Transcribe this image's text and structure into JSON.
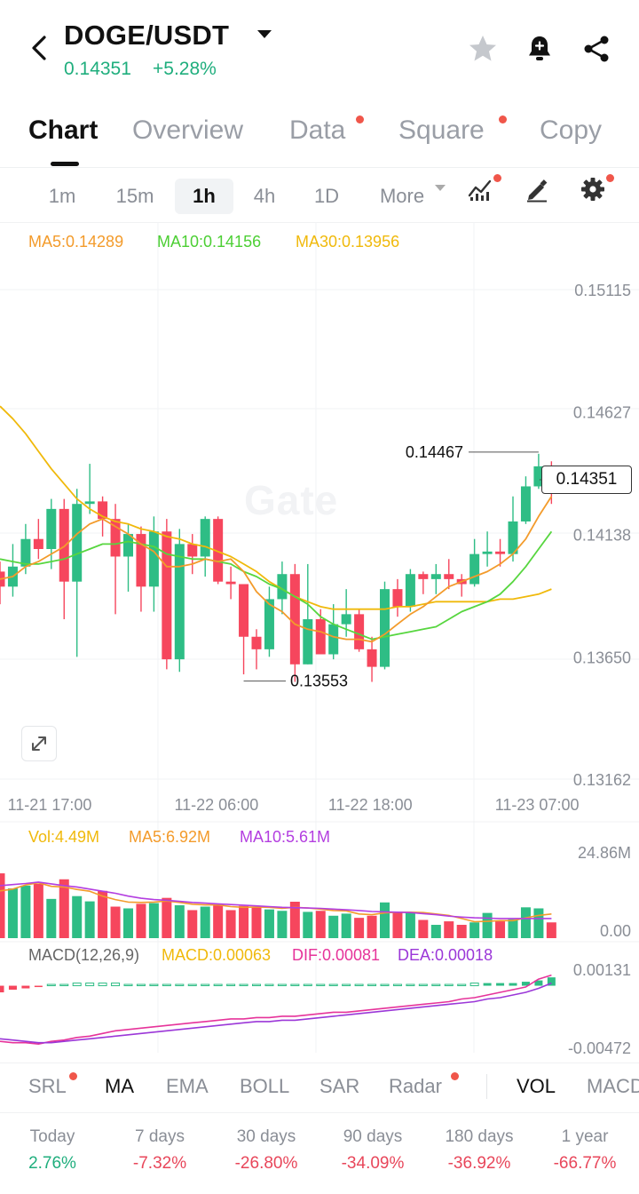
{
  "header": {
    "pair": "DOGE/USDT",
    "price": "0.14351",
    "change": "+5.28%"
  },
  "tabs": [
    {
      "label": "Chart",
      "active": true,
      "dot": false
    },
    {
      "label": "Overview",
      "active": false,
      "dot": false
    },
    {
      "label": "Data",
      "active": false,
      "dot": true
    },
    {
      "label": "Square",
      "active": false,
      "dot": true
    },
    {
      "label": "Copy",
      "active": false,
      "dot": false
    }
  ],
  "intervals": {
    "items": [
      "1m",
      "15m",
      "1h",
      "4h",
      "1D"
    ],
    "active": "1h",
    "more": "More"
  },
  "ma_legend": {
    "ma5": "MA5:0.14289",
    "ma10": "MA10:0.14156",
    "ma30": "MA30:0.13956"
  },
  "colors": {
    "up": "#2ebd85",
    "down": "#f6465d",
    "ma5": "#f39b2b",
    "ma10": "#57d63f",
    "ma30": "#f0b90b",
    "vol_ma10": "#b33ee0",
    "dif": "#e6339a",
    "dea": "#9b37d8",
    "accent_green": "#1fae7d",
    "accent_red": "#e8465a"
  },
  "markers": {
    "high": "0.14467",
    "low": "0.13553",
    "current": "0.14351"
  },
  "watermark": "Gate",
  "volume_legend": {
    "vol": "Vol:4.49M",
    "ma5": "MA5:6.92M",
    "ma10": "MA10:5.61M",
    "max_label": "24.86M",
    "min_label": "0.00"
  },
  "macd_legend": {
    "title": "MACD(12,26,9)",
    "macd": "MACD:0.00063",
    "dif": "DIF:0.00081",
    "dea": "DEA:0.00018",
    "max_label": "0.00131",
    "min_label": "-0.00472"
  },
  "indicators": [
    {
      "label": "SRL",
      "dot": true,
      "dark": false
    },
    {
      "label": "MA",
      "dot": false,
      "dark": true
    },
    {
      "label": "EMA",
      "dot": false,
      "dark": false
    },
    {
      "label": "BOLL",
      "dot": false,
      "dark": false
    },
    {
      "label": "SAR",
      "dot": false,
      "dark": false
    },
    {
      "label": "Radar",
      "dot": true,
      "dark": false
    },
    {
      "label": "VOL",
      "dot": false,
      "dark": true
    },
    {
      "label": "MACD",
      "dot": false,
      "dark": false
    }
  ],
  "performance": [
    {
      "label": "Today",
      "value": "2.76%",
      "dir": "up"
    },
    {
      "label": "7 days",
      "value": "-7.32%",
      "dir": "down"
    },
    {
      "label": "30 days",
      "value": "-26.80%",
      "dir": "down"
    },
    {
      "label": "90 days",
      "value": "-34.09%",
      "dir": "down"
    },
    {
      "label": "180 days",
      "value": "-36.92%",
      "dir": "down"
    },
    {
      "label": "1 year",
      "value": "-66.77%",
      "dir": "down"
    }
  ],
  "chart_data": {
    "type": "candlestick",
    "y_ticks": [
      0.15115,
      0.14627,
      0.14138,
      0.1365,
      0.13162
    ],
    "y_tick_labels": [
      "0.15115",
      "0.14627",
      "0.14138",
      "0.13650",
      "0.13162"
    ],
    "x_tick_labels": [
      "11-21 17:00",
      "11-22 06:00",
      "11-22 18:00",
      "11-23 07:00"
    ],
    "x_tick_index": [
      0,
      13,
      25,
      38
    ],
    "candles": [
      [
        0.1399,
        0.1393,
        0.1403,
        0.1386
      ],
      [
        0.1393,
        0.1401,
        0.141,
        0.1389
      ],
      [
        0.1401,
        0.1412,
        0.1418,
        0.1398
      ],
      [
        0.1412,
        0.1408,
        0.142,
        0.1404
      ],
      [
        0.1408,
        0.1424,
        0.1428,
        0.14
      ],
      [
        0.1424,
        0.1395,
        0.1428,
        0.138
      ],
      [
        0.1395,
        0.1426,
        0.1432,
        0.1365
      ],
      [
        0.1426,
        0.1427,
        0.1442,
        0.1422
      ],
      [
        0.1427,
        0.142,
        0.1429,
        0.1413
      ],
      [
        0.142,
        0.1405,
        0.1426,
        0.1382
      ],
      [
        0.1405,
        0.1414,
        0.1418,
        0.1391
      ],
      [
        0.1414,
        0.1393,
        0.1417,
        0.1383
      ],
      [
        0.1393,
        0.1415,
        0.1421,
        0.1383
      ],
      [
        0.1415,
        0.1364,
        0.142,
        0.136
      ],
      [
        0.1364,
        0.141,
        0.1416,
        0.1359
      ],
      [
        0.141,
        0.1405,
        0.1414,
        0.1398
      ],
      [
        0.1405,
        0.142,
        0.1421,
        0.1397
      ],
      [
        0.142,
        0.1395,
        0.1421,
        0.1394
      ],
      [
        0.1395,
        0.1394,
        0.1401,
        0.1388
      ],
      [
        0.1394,
        0.1373,
        0.1394,
        0.1358
      ],
      [
        0.1373,
        0.1368,
        0.1376,
        0.136
      ],
      [
        0.1368,
        0.1388,
        0.1393,
        0.1365
      ],
      [
        0.1388,
        0.1398,
        0.1403,
        0.1382
      ],
      [
        0.1398,
        0.1362,
        0.1402,
        0.1355
      ],
      [
        0.1362,
        0.138,
        0.1402,
        0.1362
      ],
      [
        0.138,
        0.1366,
        0.1384,
        0.1366
      ],
      [
        0.1366,
        0.1378,
        0.1386,
        0.1364
      ],
      [
        0.1378,
        0.1382,
        0.1392,
        0.1373
      ],
      [
        0.1382,
        0.1368,
        0.1384,
        0.1367
      ],
      [
        0.1368,
        0.1361,
        0.1373,
        0.1355
      ],
      [
        0.1361,
        0.1392,
        0.1395,
        0.136
      ],
      [
        0.1392,
        0.1385,
        0.1396,
        0.1381
      ],
      [
        0.1385,
        0.1398,
        0.14,
        0.1383
      ],
      [
        0.1398,
        0.1396,
        0.1399,
        0.139
      ],
      [
        0.1396,
        0.1398,
        0.1402,
        0.139
      ],
      [
        0.1398,
        0.1396,
        0.1404,
        0.1392
      ],
      [
        0.1396,
        0.1394,
        0.1398,
        0.1389
      ],
      [
        0.1394,
        0.1406,
        0.1412,
        0.1393
      ],
      [
        0.1406,
        0.1407,
        0.1415,
        0.1401
      ],
      [
        0.1407,
        0.1406,
        0.1412,
        0.1401
      ],
      [
        0.1406,
        0.1419,
        0.1429,
        0.1403
      ],
      [
        0.1419,
        0.1433,
        0.1437,
        0.1418
      ],
      [
        0.1433,
        0.1441,
        0.1446,
        0.1432
      ],
      [
        0.1441,
        0.1438,
        0.1443,
        0.1426
      ]
    ],
    "ma5": [
      0.1396,
      0.1397,
      0.1401,
      0.1403,
      0.1406,
      0.1409,
      0.1414,
      0.1418,
      0.142,
      0.1417,
      0.1414,
      0.141,
      0.1407,
      0.1401,
      0.1401,
      0.1402,
      0.1404,
      0.1403,
      0.1404,
      0.1399,
      0.1391,
      0.1386,
      0.1383,
      0.1378,
      0.1376,
      0.1375,
      0.1373,
      0.1372,
      0.1372,
      0.1371,
      0.1374,
      0.1378,
      0.1382,
      0.1385,
      0.1389,
      0.1393,
      0.1395,
      0.1397,
      0.1399,
      0.1402,
      0.1406,
      0.1412,
      0.1421,
      0.1429
    ],
    "ma10": [
      0.1404,
      0.1403,
      0.1402,
      0.1402,
      0.1403,
      0.1404,
      0.1406,
      0.1408,
      0.141,
      0.141,
      0.1411,
      0.141,
      0.1409,
      0.1406,
      0.1405,
      0.1404,
      0.1404,
      0.1403,
      0.1402,
      0.1399,
      0.1397,
      0.1394,
      0.1392,
      0.1389,
      0.1386,
      0.1381,
      0.1378,
      0.1376,
      0.1374,
      0.1372,
      0.1373,
      0.1374,
      0.1375,
      0.1376,
      0.1377,
      0.138,
      0.1383,
      0.1385,
      0.1387,
      0.139,
      0.1395,
      0.1401,
      0.1408,
      0.1415
    ],
    "ma30": [
      0.1465,
      0.146,
      0.1454,
      0.1447,
      0.144,
      0.1434,
      0.1428,
      0.1424,
      0.1421,
      0.1419,
      0.1418,
      0.1416,
      0.1415,
      0.1413,
      0.1412,
      0.141,
      0.1409,
      0.1407,
      0.1405,
      0.1402,
      0.1399,
      0.1395,
      0.1392,
      0.1389,
      0.1387,
      0.1385,
      0.1384,
      0.1384,
      0.1384,
      0.1384,
      0.1384,
      0.1385,
      0.1385,
      0.1386,
      0.1387,
      0.1387,
      0.1387,
      0.1387,
      0.1387,
      0.1388,
      0.1388,
      0.1389,
      0.139,
      0.1392
    ],
    "volume": [
      18.5,
      14.2,
      15.0,
      15.5,
      11.2,
      16.8,
      12.0,
      10.5,
      13.5,
      9.0,
      8.5,
      9.8,
      10.0,
      11.5,
      9.4,
      8.0,
      9.0,
      9.5,
      8.0,
      9.2,
      9.0,
      8.2,
      7.8,
      10.4,
      7.5,
      7.8,
      6.4,
      7.0,
      5.8,
      6.4,
      10.2,
      7.6,
      7.2,
      5.2,
      3.8,
      4.8,
      3.8,
      4.5,
      7.2,
      4.8,
      5.4,
      8.8,
      8.5,
      4.5
    ],
    "vol_ma5": [
      13.5,
      14.0,
      15.2,
      15.8,
      14.8,
      14.6,
      13.9,
      13.4,
      12.0,
      11.0,
      10.3,
      10.2,
      10.3,
      10.6,
      10.2,
      9.7,
      9.5,
      9.5,
      9.0,
      8.8,
      8.9,
      8.8,
      8.5,
      8.8,
      8.6,
      8.3,
      7.9,
      7.8,
      6.9,
      6.7,
      7.2,
      7.4,
      7.4,
      7.3,
      6.9,
      6.5,
      5.6,
      4.7,
      4.8,
      5.0,
      5.0,
      5.8,
      6.5,
      6.9
    ],
    "vol_ma10": [
      15.0,
      15.3,
      15.6,
      16.0,
      15.5,
      15.0,
      14.6,
      14.0,
      13.4,
      12.8,
      12.0,
      11.4,
      11.0,
      10.8,
      10.5,
      10.2,
      10.0,
      9.8,
      9.6,
      9.4,
      9.2,
      9.0,
      8.8,
      8.7,
      8.6,
      8.5,
      8.3,
      8.1,
      7.9,
      7.6,
      7.5,
      7.4,
      7.3,
      7.0,
      6.7,
      6.3,
      6.0,
      5.8,
      5.7,
      5.6,
      5.6,
      5.6,
      5.6,
      5.61
    ],
    "macd_hist": [
      -0.0005,
      -0.0003,
      -0.0002,
      -0.0001,
      0.0001,
      0.0001,
      0.0002,
      0.0002,
      0.0002,
      0.0002,
      0.0001,
      0.0001,
      0.0001,
      0.0001,
      0.0001,
      0.0001,
      0.0001,
      0.0001,
      0.0001,
      0.0001,
      0.0001,
      0.0001,
      0.0001,
      0.0001,
      0.0001,
      0.0001,
      0.0001,
      0.0001,
      0.0001,
      0.0001,
      0.0001,
      0.0001,
      0.0001,
      0.0001,
      0.0001,
      0.0001,
      0.0001,
      0.0002,
      0.0002,
      0.0002,
      0.0002,
      0.0003,
      0.0004,
      0.00063
    ],
    "dif": [
      -0.0042,
      -0.0043,
      -0.0043,
      -0.0044,
      -0.0042,
      -0.0041,
      -0.0039,
      -0.0038,
      -0.0036,
      -0.0034,
      -0.0033,
      -0.0032,
      -0.0031,
      -0.003,
      -0.0029,
      -0.0028,
      -0.0027,
      -0.0026,
      -0.0025,
      -0.0025,
      -0.0024,
      -0.0024,
      -0.0023,
      -0.0023,
      -0.0022,
      -0.0021,
      -0.002,
      -0.002,
      -0.0019,
      -0.0018,
      -0.0017,
      -0.0016,
      -0.0015,
      -0.0014,
      -0.0013,
      -0.0012,
      -0.001,
      -0.0009,
      -0.0007,
      -0.0005,
      -0.0003,
      -0.0001,
      0.0005,
      0.0008
    ],
    "dea": [
      -0.004,
      -0.0041,
      -0.0042,
      -0.0043,
      -0.0043,
      -0.0042,
      -0.0041,
      -0.004,
      -0.0039,
      -0.0038,
      -0.0037,
      -0.0036,
      -0.0035,
      -0.0034,
      -0.0033,
      -0.0032,
      -0.0031,
      -0.003,
      -0.0029,
      -0.0028,
      -0.0027,
      -0.0027,
      -0.0026,
      -0.0026,
      -0.0025,
      -0.0024,
      -0.0023,
      -0.0022,
      -0.0021,
      -0.002,
      -0.0019,
      -0.0018,
      -0.0017,
      -0.0016,
      -0.0015,
      -0.0014,
      -0.0013,
      -0.0012,
      -0.001,
      -0.0009,
      -0.0007,
      -0.0005,
      -0.0002,
      0.0002
    ]
  }
}
